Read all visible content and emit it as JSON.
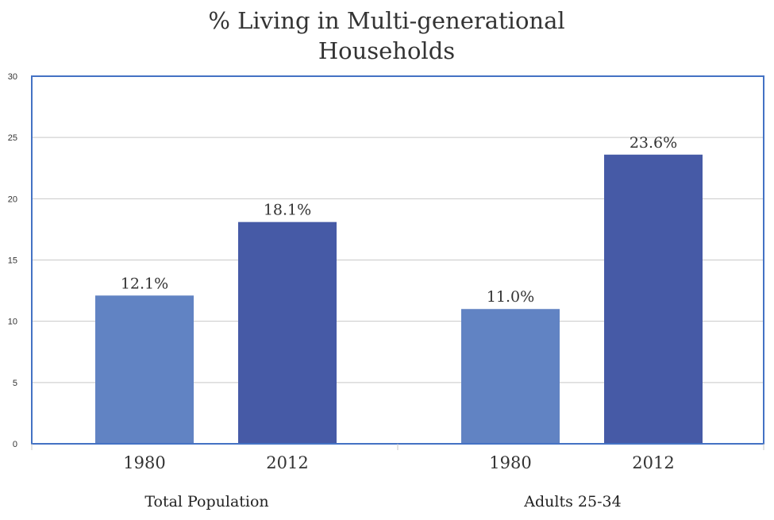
{
  "chart_data": {
    "type": "bar",
    "title_lines": [
      "% Living in Multi-generational",
      "Households"
    ],
    "xlabel": "",
    "ylabel": "",
    "ylim": [
      0,
      30
    ],
    "yticks": [
      0,
      5,
      10,
      15,
      20,
      25,
      30
    ],
    "grid": true,
    "groups": [
      {
        "name": "Total Population",
        "bars": [
          {
            "label": "1980",
            "value": 12.1,
            "data_label": "12.1%",
            "color": "#6183c3"
          },
          {
            "label": "2012",
            "value": 18.1,
            "data_label": "18.1%",
            "color": "#465aa6"
          }
        ]
      },
      {
        "name": "Adults 25-34",
        "bars": [
          {
            "label": "1980",
            "value": 11.0,
            "data_label": "11.0%",
            "color": "#6183c3"
          },
          {
            "label": "2012",
            "value": 23.6,
            "data_label": "23.6%",
            "color": "#465aa6"
          }
        ]
      }
    ],
    "colors": {
      "frame": "#4472c4",
      "grid": "#c8c8c8"
    }
  }
}
